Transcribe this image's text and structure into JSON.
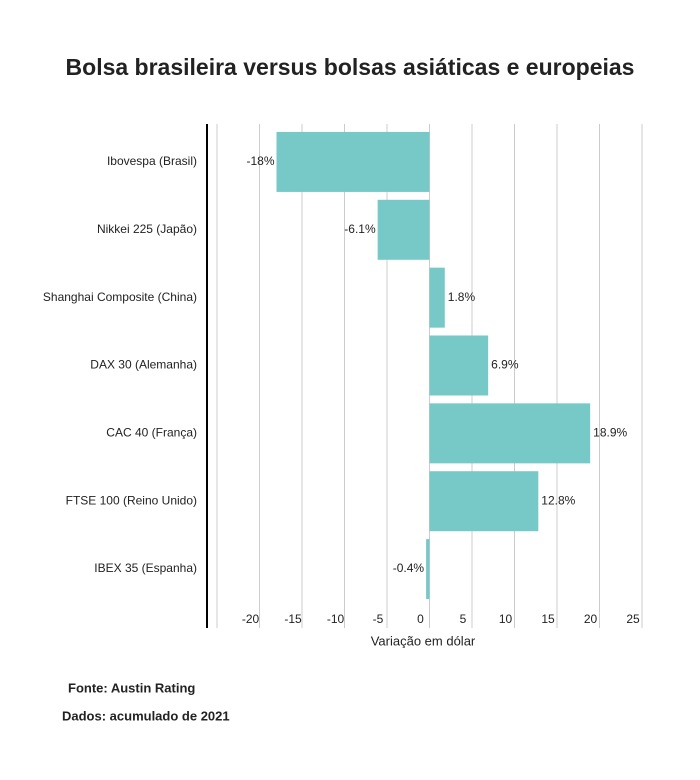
{
  "chart_data": {
    "type": "hbar",
    "title": "Bolsa brasileira versus bolsas asiáticas e europeias",
    "categories": [
      "Ibovespa (Brasil)",
      "Nikkei 225 (Japão)",
      "Shanghai Composite (China)",
      "DAX 30 (Alemanha)",
      "CAC 40 (França)",
      "FTSE 100 (Reino Unido)",
      "IBEX 35 (Espanha)"
    ],
    "values": [
      -18,
      -6.1,
      1.8,
      6.9,
      18.9,
      12.8,
      -0.4
    ],
    "value_labels": [
      "-18%",
      "-6.1%",
      "1.8%",
      "6.9%",
      "18.9%",
      "12.8%",
      "-0.4%"
    ],
    "color": "#76c9c7",
    "xlim": [
      -25,
      25
    ],
    "xticks": [
      -20,
      -15,
      -10,
      -5,
      0,
      5,
      10,
      15,
      20,
      25
    ],
    "grid": true,
    "xlabel": "Variação em dólar",
    "notes": [
      "Fonte: Austin Rating",
      "Dados: acumulado de 2021"
    ]
  }
}
